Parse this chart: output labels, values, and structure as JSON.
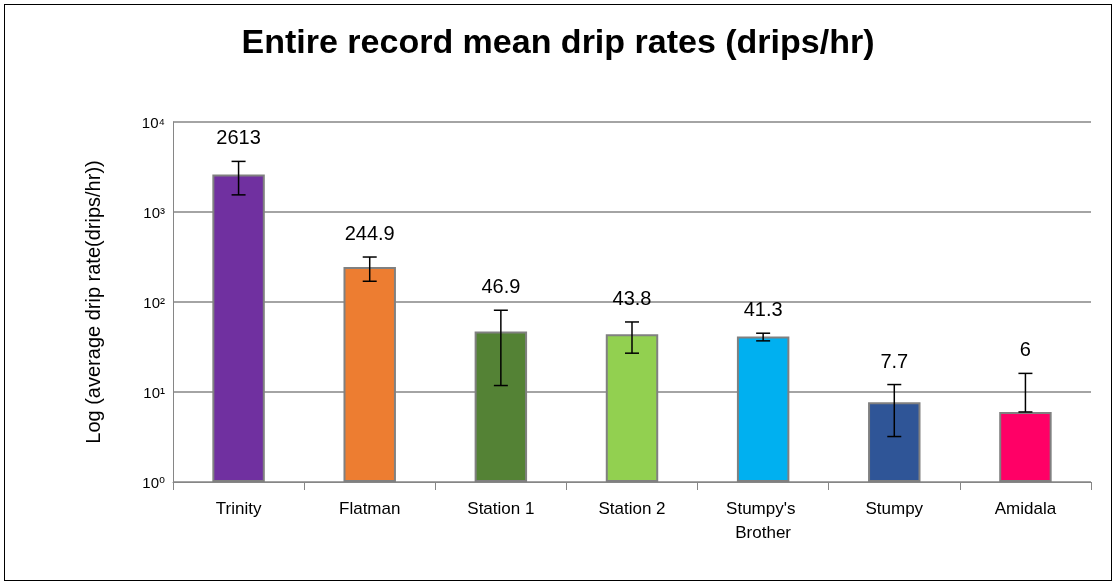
{
  "chart_data": {
    "type": "bar",
    "title": "Entire record mean drip rates (drips/hr)",
    "ylabel": "Log (average drip rate(drips/hr))",
    "categories": [
      "Trinity",
      "Flatman",
      "Station 1",
      "Station 2",
      "Stumpy's Brother",
      "Stumpy",
      "Amidala"
    ],
    "values": [
      2613,
      244.9,
      46.9,
      43.8,
      41.3,
      7.7,
      6
    ],
    "colors": [
      "#7030a0",
      "#ed7d31",
      "#548235",
      "#92d050",
      "#00b0f0",
      "#2f5597",
      "#ff0066"
    ],
    "errors": [
      [
        1550,
        3650
      ],
      [
        170,
        316
      ],
      [
        11.8,
        81
      ],
      [
        27,
        60
      ],
      [
        37,
        45
      ],
      [
        3.2,
        12.1
      ],
      [
        6,
        16.1
      ]
    ],
    "data_labels": true,
    "log": "y",
    "ylim": [
      1,
      10000
    ],
    "yticks": [
      {
        "value": 1,
        "label": "10⁰"
      },
      {
        "value": 10,
        "label": "10¹"
      },
      {
        "value": 100,
        "label": "10²"
      },
      {
        "value": 1000,
        "label": "10³"
      },
      {
        "value": 10000,
        "label": "10⁴"
      }
    ],
    "grid": "y"
  }
}
